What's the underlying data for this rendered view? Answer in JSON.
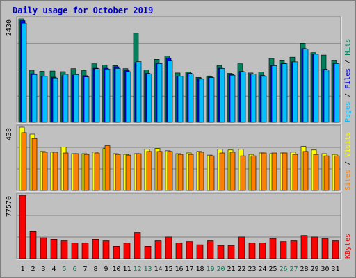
{
  "title": "Daily usage for October 2019",
  "colors": {
    "frame_bg": "#c0c0c0",
    "panel_bg": "#c0c0c0",
    "title": "#0000cc",
    "hits": "#00805c",
    "files": "#0000ff",
    "pages": "#00c0ff",
    "sites": "#ff8000",
    "visits": "#ffff00",
    "kbytes": "#ff0000",
    "weekend_label": "#00805c",
    "weekday_label": "#000000"
  },
  "chart_data": [
    {
      "type": "bar",
      "name": "hits-files-pages",
      "scale_label": "2430",
      "ylim": [
        0,
        2430
      ],
      "legend": [
        "Pages",
        "Files",
        "Hits"
      ],
      "categories": [
        "1",
        "2",
        "3",
        "4",
        "5",
        "6",
        "7",
        "8",
        "9",
        "10",
        "11",
        "12",
        "13",
        "14",
        "15",
        "16",
        "17",
        "18",
        "19",
        "20",
        "21",
        "22",
        "23",
        "24",
        "25",
        "26",
        "27",
        "28",
        "29",
        "30",
        "31"
      ],
      "series": [
        {
          "name": "Hits",
          "values": [
            2430,
            1225,
            1200,
            1205,
            1190,
            1260,
            1215,
            1375,
            1345,
            1330,
            1260,
            2090,
            1235,
            1480,
            1560,
            1160,
            1180,
            1055,
            1090,
            1335,
            1150,
            1375,
            1160,
            1185,
            1500,
            1445,
            1530,
            1855,
            1635,
            1580,
            1450
          ]
        },
        {
          "name": "Files",
          "values": [
            2390,
            1140,
            1080,
            1060,
            1095,
            1110,
            1095,
            1270,
            1270,
            1305,
            1225,
            1405,
            1150,
            1395,
            1510,
            1085,
            1155,
            1030,
            1065,
            1270,
            1130,
            1195,
            1125,
            1100,
            1335,
            1390,
            1420,
            1730,
            1600,
            1250,
            1390
          ]
        },
        {
          "name": "Pages",
          "values": [
            2330,
            1120,
            1080,
            1040,
            1125,
            1120,
            1065,
            1260,
            1250,
            1265,
            1190,
            1425,
            1135,
            1380,
            1440,
            1080,
            1135,
            1015,
            1050,
            1265,
            1105,
            1180,
            1130,
            1080,
            1330,
            1375,
            1420,
            1720,
            1600,
            1235,
            1380
          ]
        }
      ]
    },
    {
      "type": "bar",
      "name": "visits-sites",
      "scale_label": "438",
      "ylim": [
        0,
        438
      ],
      "legend": [
        "Sites",
        "Visits"
      ],
      "categories": [
        "1",
        "2",
        "3",
        "4",
        "5",
        "6",
        "7",
        "8",
        "9",
        "10",
        "11",
        "12",
        "13",
        "14",
        "15",
        "16",
        "17",
        "18",
        "19",
        "20",
        "21",
        "22",
        "23",
        "24",
        "25",
        "26",
        "27",
        "28",
        "29",
        "30",
        "31"
      ],
      "series": [
        {
          "name": "Visits",
          "values": [
            438,
            390,
            270,
            265,
            300,
            255,
            255,
            265,
            290,
            255,
            250,
            255,
            285,
            290,
            275,
            255,
            260,
            270,
            245,
            285,
            280,
            285,
            250,
            260,
            255,
            260,
            265,
            305,
            280,
            255,
            250
          ]
        },
        {
          "name": "Sites",
          "values": [
            400,
            360,
            265,
            265,
            260,
            255,
            250,
            260,
            310,
            250,
            245,
            255,
            270,
            270,
            270,
            250,
            250,
            265,
            240,
            260,
            265,
            240,
            240,
            260,
            260,
            260,
            250,
            270,
            250,
            240,
            240
          ]
        }
      ]
    },
    {
      "type": "bar",
      "name": "kbytes",
      "scale_label": "77570",
      "ylim": [
        0,
        77570
      ],
      "legend": [
        "KBytes"
      ],
      "categories": [
        "1",
        "2",
        "3",
        "4",
        "5",
        "6",
        "7",
        "8",
        "9",
        "10",
        "11",
        "12",
        "13",
        "14",
        "15",
        "16",
        "17",
        "18",
        "19",
        "20",
        "21",
        "22",
        "23",
        "24",
        "25",
        "26",
        "27",
        "28",
        "29",
        "30",
        "31"
      ],
      "series": [
        {
          "name": "KBytes",
          "values": [
            77570,
            33000,
            25500,
            23600,
            21700,
            18900,
            18900,
            23600,
            21700,
            15100,
            18900,
            32000,
            15100,
            21700,
            26500,
            18900,
            20800,
            17000,
            21700,
            16100,
            16100,
            26500,
            18900,
            18900,
            24600,
            20800,
            21700,
            28400,
            26500,
            24600,
            21700
          ]
        }
      ]
    }
  ],
  "weekend_days": [
    "5",
    "6",
    "12",
    "13",
    "19",
    "20",
    "26",
    "27"
  ]
}
